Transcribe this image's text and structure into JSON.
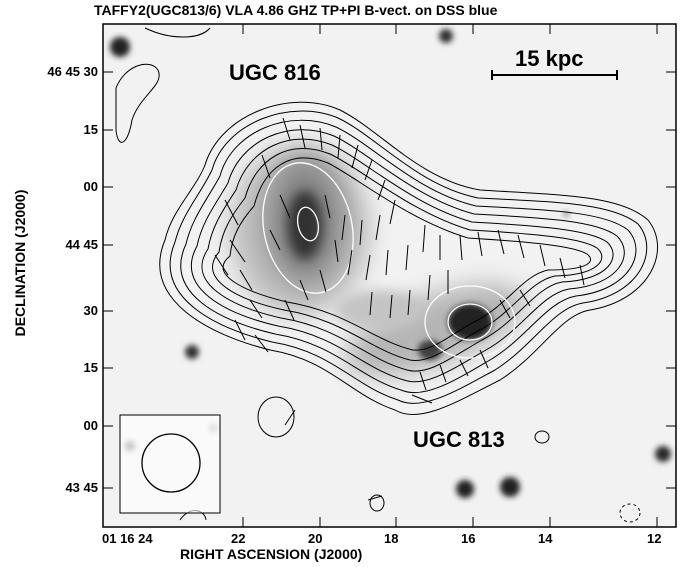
{
  "figure": {
    "title": "TAFFY2(UGC813/6) VLA 4.86 GHZ TP+PI B-vect. on DSS blue",
    "x_axis_title": "RIGHT ASCENSION (J2000)",
    "y_axis_title": "DECLINATION (J2000)",
    "x_ticks": [
      "01 16 24",
      "22",
      "20",
      "18",
      "16",
      "14",
      "12"
    ],
    "y_ticks": [
      "46 45 30",
      "15",
      "00",
      "44 45",
      "30",
      "15",
      "00",
      "43 45"
    ],
    "labels": {
      "galaxy_north": "UGC 816",
      "galaxy_south": "UGC 813",
      "scale_bar": "15 kpc"
    },
    "colors": {
      "background": "#ffffff",
      "contours": "#000000",
      "inner_contours": "#ffffff"
    }
  }
}
